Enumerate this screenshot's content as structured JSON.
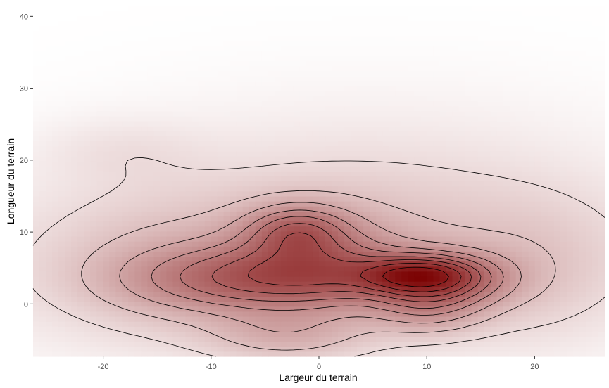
{
  "chart_data": {
    "type": "heatmap",
    "subtype": "2d-density-with-contours",
    "title": "",
    "xlabel": "Largeur du terrain",
    "ylabel": "Longueur du terrain",
    "xlim": [
      -26.5,
      26.5
    ],
    "ylim": [
      -7.3,
      41.5
    ],
    "x_ticks": [
      -20,
      -10,
      0,
      10,
      20
    ],
    "y_ticks": [
      0,
      10,
      20,
      30,
      40
    ],
    "grid": false,
    "legend": "none",
    "fill_low_color": "#ffffff",
    "fill_high_color": "#7a0000",
    "contour_color": "#000000",
    "density_peaks": [
      {
        "x": 9,
        "y": 4,
        "weight": 1.0,
        "sx": 3.5,
        "sy": 1.6
      },
      {
        "x": 12,
        "y": 3.5,
        "weight": 0.55,
        "sx": 4,
        "sy": 2.5
      },
      {
        "x": -2,
        "y": 10,
        "weight": 0.55,
        "sx": 3,
        "sy": 2.3
      },
      {
        "x": -7,
        "y": 3.5,
        "weight": 0.65,
        "sx": 7,
        "sy": 3
      },
      {
        "x": 2,
        "y": 4,
        "weight": 0.45,
        "sx": 6,
        "sy": 3
      },
      {
        "x": -1,
        "y": 8,
        "weight": 0.3,
        "sx": 5,
        "sy": 4
      },
      {
        "x": 10,
        "y": 0,
        "weight": 0.4,
        "sx": 3.5,
        "sy": 2.5
      },
      {
        "x": -3,
        "y": -4,
        "weight": 0.25,
        "sx": 5,
        "sy": 2.5
      },
      {
        "x": 0,
        "y": 6,
        "weight": 0.18,
        "sx": 18,
        "sy": 7
      },
      {
        "x": -15,
        "y": 5,
        "weight": 0.1,
        "sx": 6,
        "sy": 6
      },
      {
        "x": 20,
        "y": 5,
        "weight": 0.08,
        "sx": 5,
        "sy": 6
      },
      {
        "x": -18,
        "y": 21,
        "weight": 0.05,
        "sx": 5,
        "sy": 3
      },
      {
        "x": 5,
        "y": 14,
        "weight": 0.07,
        "sx": 14,
        "sy": 8
      }
    ],
    "contour_levels": [
      0.04,
      0.1,
      0.18,
      0.27,
      0.36,
      0.46,
      0.56,
      0.68,
      0.82
    ]
  }
}
